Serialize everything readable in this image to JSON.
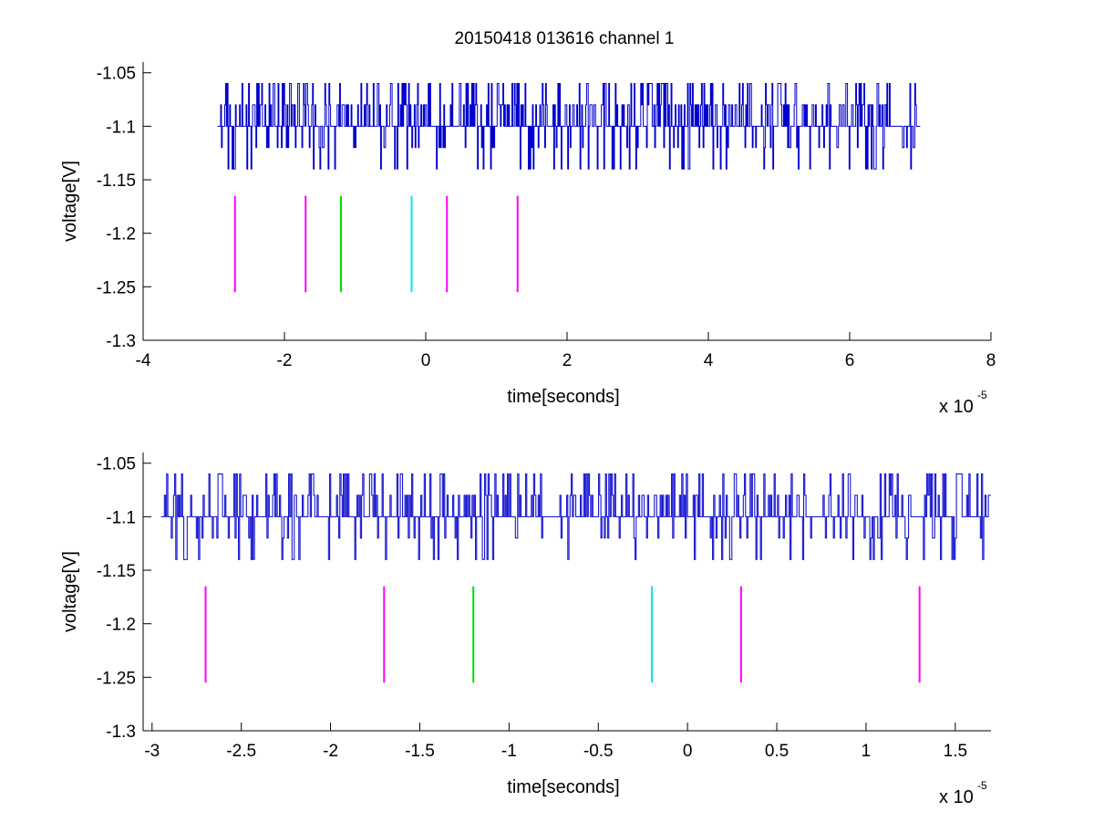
{
  "title": "20150418 013616 channel 1",
  "colors": {
    "signal": "#0000cc",
    "axes": "#000000",
    "marker_magenta": "#ff00ff",
    "marker_green": "#00dd00",
    "marker_cyan": "#00e5ee"
  },
  "chart_data": [
    {
      "type": "line",
      "title": "20150418 013616 channel 1",
      "xlabel": "time[seconds]",
      "ylabel": "voltage[V]",
      "x_multiplier": "x 10",
      "x_multiplier_exponent": "-5",
      "xlim": [
        -4,
        8
      ],
      "ylim": [
        -1.3,
        -1.04
      ],
      "x_ticks": [
        -4,
        -2,
        0,
        2,
        4,
        6,
        8
      ],
      "x_tick_labels": [
        "-4",
        "-2",
        "0",
        "2",
        "4",
        "6",
        "8"
      ],
      "y_ticks": [
        -1.3,
        -1.25,
        -1.2,
        -1.15,
        -1.1,
        -1.05
      ],
      "y_tick_labels": [
        "-1.3",
        "-1.25",
        "-1.2",
        "-1.15",
        "-1.1",
        "-1.05"
      ],
      "grid": false,
      "series": [
        {
          "kind": "signal",
          "color": "signal",
          "x_range": [
            -2.95,
            7.0
          ],
          "levels": [
            -1.06,
            -1.08,
            -1.1,
            -1.12,
            -1.14
          ],
          "baseline": -1.1
        }
      ],
      "markers": [
        {
          "x": -2.7,
          "y_range": [
            -1.255,
            -1.165
          ],
          "color": "marker_magenta"
        },
        {
          "x": -1.7,
          "y_range": [
            -1.255,
            -1.165
          ],
          "color": "marker_magenta"
        },
        {
          "x": -1.2,
          "y_range": [
            -1.255,
            -1.165
          ],
          "color": "marker_green"
        },
        {
          "x": -0.2,
          "y_range": [
            -1.255,
            -1.165
          ],
          "color": "marker_cyan"
        },
        {
          "x": 0.3,
          "y_range": [
            -1.255,
            -1.165
          ],
          "color": "marker_magenta"
        },
        {
          "x": 1.3,
          "y_range": [
            -1.255,
            -1.165
          ],
          "color": "marker_magenta"
        }
      ]
    },
    {
      "type": "line",
      "title": "",
      "xlabel": "time[seconds]",
      "ylabel": "voltage[V]",
      "x_multiplier": "x 10",
      "x_multiplier_exponent": "-5",
      "xlim": [
        -3.05,
        1.7
      ],
      "ylim": [
        -1.3,
        -1.04
      ],
      "x_ticks": [
        -3,
        -2.5,
        -2,
        -1.5,
        -1,
        -0.5,
        0,
        0.5,
        1,
        1.5
      ],
      "x_tick_labels": [
        "-3",
        "-2.5",
        "-2",
        "-1.5",
        "-1",
        "-0.5",
        "0",
        "0.5",
        "1",
        "1.5"
      ],
      "y_ticks": [
        -1.3,
        -1.25,
        -1.2,
        -1.15,
        -1.1,
        -1.05
      ],
      "y_tick_labels": [
        "-1.3",
        "-1.25",
        "-1.2",
        "-1.15",
        "-1.1",
        "-1.05"
      ],
      "grid": false,
      "series": [
        {
          "kind": "signal",
          "color": "signal",
          "x_range": [
            -2.95,
            1.7
          ],
          "levels": [
            -1.06,
            -1.08,
            -1.1,
            -1.12,
            -1.14
          ],
          "baseline": -1.1
        }
      ],
      "markers": [
        {
          "x": -2.7,
          "y_range": [
            -1.255,
            -1.165
          ],
          "color": "marker_magenta"
        },
        {
          "x": -1.7,
          "y_range": [
            -1.255,
            -1.165
          ],
          "color": "marker_magenta"
        },
        {
          "x": -1.2,
          "y_range": [
            -1.255,
            -1.165
          ],
          "color": "marker_green"
        },
        {
          "x": -0.2,
          "y_range": [
            -1.255,
            -1.165
          ],
          "color": "marker_cyan"
        },
        {
          "x": 0.3,
          "y_range": [
            -1.255,
            -1.165
          ],
          "color": "marker_magenta"
        },
        {
          "x": 1.3,
          "y_range": [
            -1.255,
            -1.165
          ],
          "color": "marker_magenta"
        }
      ]
    }
  ]
}
